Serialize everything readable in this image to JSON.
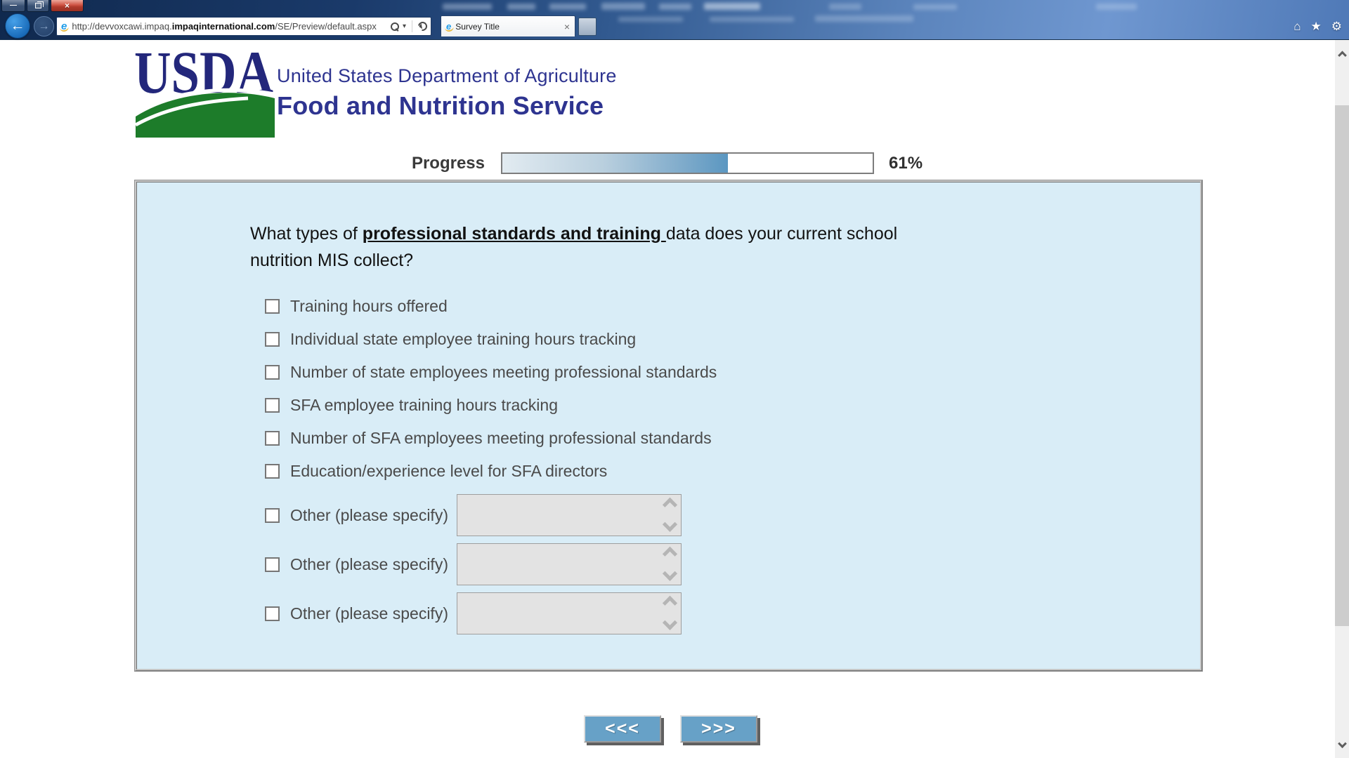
{
  "window": {
    "minimize_glyph": "—",
    "close_glyph": "×"
  },
  "browser": {
    "back_glyph": "←",
    "forward_glyph": "→",
    "address": {
      "pre": "http://devvoxcawi.impaq.",
      "domain_bold": "impaqinternational.com",
      "path": "/SE/Preview/default.aspx"
    },
    "caret_glyph": "▾",
    "tab": {
      "title": "Survey Title",
      "close_glyph": "×"
    },
    "tools": {
      "home_glyph": "⌂",
      "favorites_glyph": "★",
      "settings_glyph": "⚙"
    }
  },
  "icon_names": [
    "ie-logo",
    "search-icon",
    "dropdown-caret-icon",
    "refresh-icon",
    "home-icon",
    "favorites-star-icon",
    "settings-gear-icon",
    "minimize-icon",
    "maximize-icon",
    "close-icon",
    "scroll-up-icon",
    "scroll-down-icon",
    "textarea-scroll-up-icon",
    "textarea-scroll-down-icon"
  ],
  "header": {
    "usda": "USDA",
    "dept": "United States Department of Agriculture",
    "service": "Food and Nutrition Service"
  },
  "progress": {
    "label": "Progress",
    "percent": 61,
    "percent_label": "61%"
  },
  "question": {
    "pre": "What types of ",
    "emphasis": "professional standards and training ",
    "post": "data does your current school nutrition MIS collect?"
  },
  "options": [
    {
      "label": "Training hours offered",
      "checked": false
    },
    {
      "label": "Individual state employee training hours tracking",
      "checked": false
    },
    {
      "label": "Number of state employees meeting professional standards",
      "checked": false
    },
    {
      "label": "SFA employee training hours tracking",
      "checked": false
    },
    {
      "label": "Number of SFA employees meeting professional standards",
      "checked": false
    },
    {
      "label": "Education/experience level for SFA directors",
      "checked": false
    },
    {
      "label": "Other (please specify)",
      "checked": false,
      "value": ""
    },
    {
      "label": "Other (please specify)",
      "checked": false,
      "value": ""
    },
    {
      "label": "Other (please specify)",
      "checked": false,
      "value": ""
    }
  ],
  "nav": {
    "back_label": "<<<",
    "next_label": ">>>"
  },
  "colors": {
    "panel_bg": "#d9edf7",
    "navy_text": "#2e3490",
    "usda_green": "#1d7c2a",
    "button_blue": "#67a1c7",
    "progress_fill_start": "#e2ebf1",
    "progress_fill_end": "#5b97c1"
  }
}
